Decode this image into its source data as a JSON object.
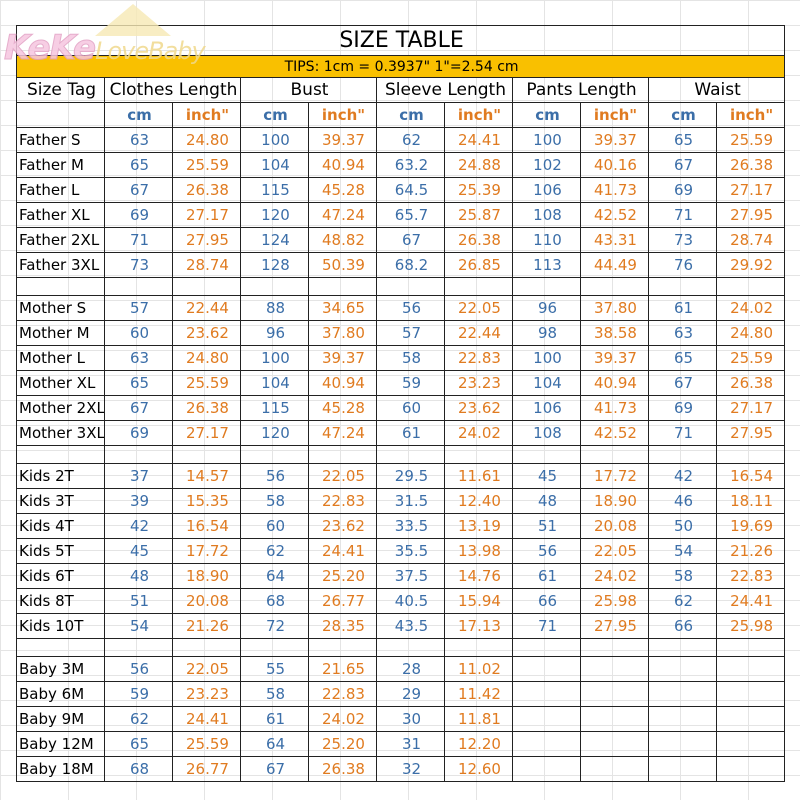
{
  "logo": {
    "text": "KeKe LoveBaby"
  },
  "title": "SIZE TABLE",
  "tips": "TIPS: 1cm = 0.3937\"   1\"=2.54 cm",
  "headers": [
    "Size Tag",
    "Clothes Length",
    "Bust",
    "Sleeve Length",
    "Pants Length",
    "Waist"
  ],
  "units": {
    "cm": "cm",
    "inch": "inch\""
  },
  "colors": {
    "cm": "#3b6ea8",
    "inch": "#e07b20",
    "tips_bg": "#f9c000"
  },
  "groups": [
    {
      "rows": [
        [
          "Father S",
          "63",
          "24.80",
          "100",
          "39.37",
          "62",
          "24.41",
          "100",
          "39.37",
          "65",
          "25.59"
        ],
        [
          "Father M",
          "65",
          "25.59",
          "104",
          "40.94",
          "63.2",
          "24.88",
          "102",
          "40.16",
          "67",
          "26.38"
        ],
        [
          "Father L",
          "67",
          "26.38",
          "115",
          "45.28",
          "64.5",
          "25.39",
          "106",
          "41.73",
          "69",
          "27.17"
        ],
        [
          "Father XL",
          "69",
          "27.17",
          "120",
          "47.24",
          "65.7",
          "25.87",
          "108",
          "42.52",
          "71",
          "27.95"
        ],
        [
          "Father 2XL",
          "71",
          "27.95",
          "124",
          "48.82",
          "67",
          "26.38",
          "110",
          "43.31",
          "73",
          "28.74"
        ],
        [
          "Father 3XL",
          "73",
          "28.74",
          "128",
          "50.39",
          "68.2",
          "26.85",
          "113",
          "44.49",
          "76",
          "29.92"
        ]
      ]
    },
    {
      "rows": [
        [
          "Mother S",
          "57",
          "22.44",
          "88",
          "34.65",
          "56",
          "22.05",
          "96",
          "37.80",
          "61",
          "24.02"
        ],
        [
          "Mother M",
          "60",
          "23.62",
          "96",
          "37.80",
          "57",
          "22.44",
          "98",
          "38.58",
          "63",
          "24.80"
        ],
        [
          "Mother L",
          "63",
          "24.80",
          "100",
          "39.37",
          "58",
          "22.83",
          "100",
          "39.37",
          "65",
          "25.59"
        ],
        [
          "Mother XL",
          "65",
          "25.59",
          "104",
          "40.94",
          "59",
          "23.23",
          "104",
          "40.94",
          "67",
          "26.38"
        ],
        [
          "Mother 2XL",
          "67",
          "26.38",
          "115",
          "45.28",
          "60",
          "23.62",
          "106",
          "41.73",
          "69",
          "27.17"
        ],
        [
          "Mother 3XL",
          "69",
          "27.17",
          "120",
          "47.24",
          "61",
          "24.02",
          "108",
          "42.52",
          "71",
          "27.95"
        ]
      ]
    },
    {
      "rows": [
        [
          "Kids 2T",
          "37",
          "14.57",
          "56",
          "22.05",
          "29.5",
          "11.61",
          "45",
          "17.72",
          "42",
          "16.54"
        ],
        [
          "Kids 3T",
          "39",
          "15.35",
          "58",
          "22.83",
          "31.5",
          "12.40",
          "48",
          "18.90",
          "46",
          "18.11"
        ],
        [
          "Kids 4T",
          "42",
          "16.54",
          "60",
          "23.62",
          "33.5",
          "13.19",
          "51",
          "20.08",
          "50",
          "19.69"
        ],
        [
          "Kids 5T",
          "45",
          "17.72",
          "62",
          "24.41",
          "35.5",
          "13.98",
          "56",
          "22.05",
          "54",
          "21.26"
        ],
        [
          "Kids 6T",
          "48",
          "18.90",
          "64",
          "25.20",
          "37.5",
          "14.76",
          "61",
          "24.02",
          "58",
          "22.83"
        ],
        [
          "Kids 8T",
          "51",
          "20.08",
          "68",
          "26.77",
          "40.5",
          "15.94",
          "66",
          "25.98",
          "62",
          "24.41"
        ],
        [
          "Kids 10T",
          "54",
          "21.26",
          "72",
          "28.35",
          "43.5",
          "17.13",
          "71",
          "27.95",
          "66",
          "25.98"
        ]
      ]
    },
    {
      "rows": [
        [
          "Baby 3M",
          "56",
          "22.05",
          "55",
          "21.65",
          "28",
          "11.02",
          "",
          "",
          "",
          ""
        ],
        [
          "Baby 6M",
          "59",
          "23.23",
          "58",
          "22.83",
          "29",
          "11.42",
          "",
          "",
          "",
          ""
        ],
        [
          "Baby 9M",
          "62",
          "24.41",
          "61",
          "24.02",
          "30",
          "11.81",
          "",
          "",
          "",
          ""
        ],
        [
          "Baby 12M",
          "65",
          "25.59",
          "64",
          "25.20",
          "31",
          "12.20",
          "",
          "",
          "",
          ""
        ],
        [
          "Baby 18M",
          "68",
          "26.77",
          "67",
          "26.38",
          "32",
          "12.60",
          "",
          "",
          "",
          ""
        ]
      ]
    }
  ]
}
